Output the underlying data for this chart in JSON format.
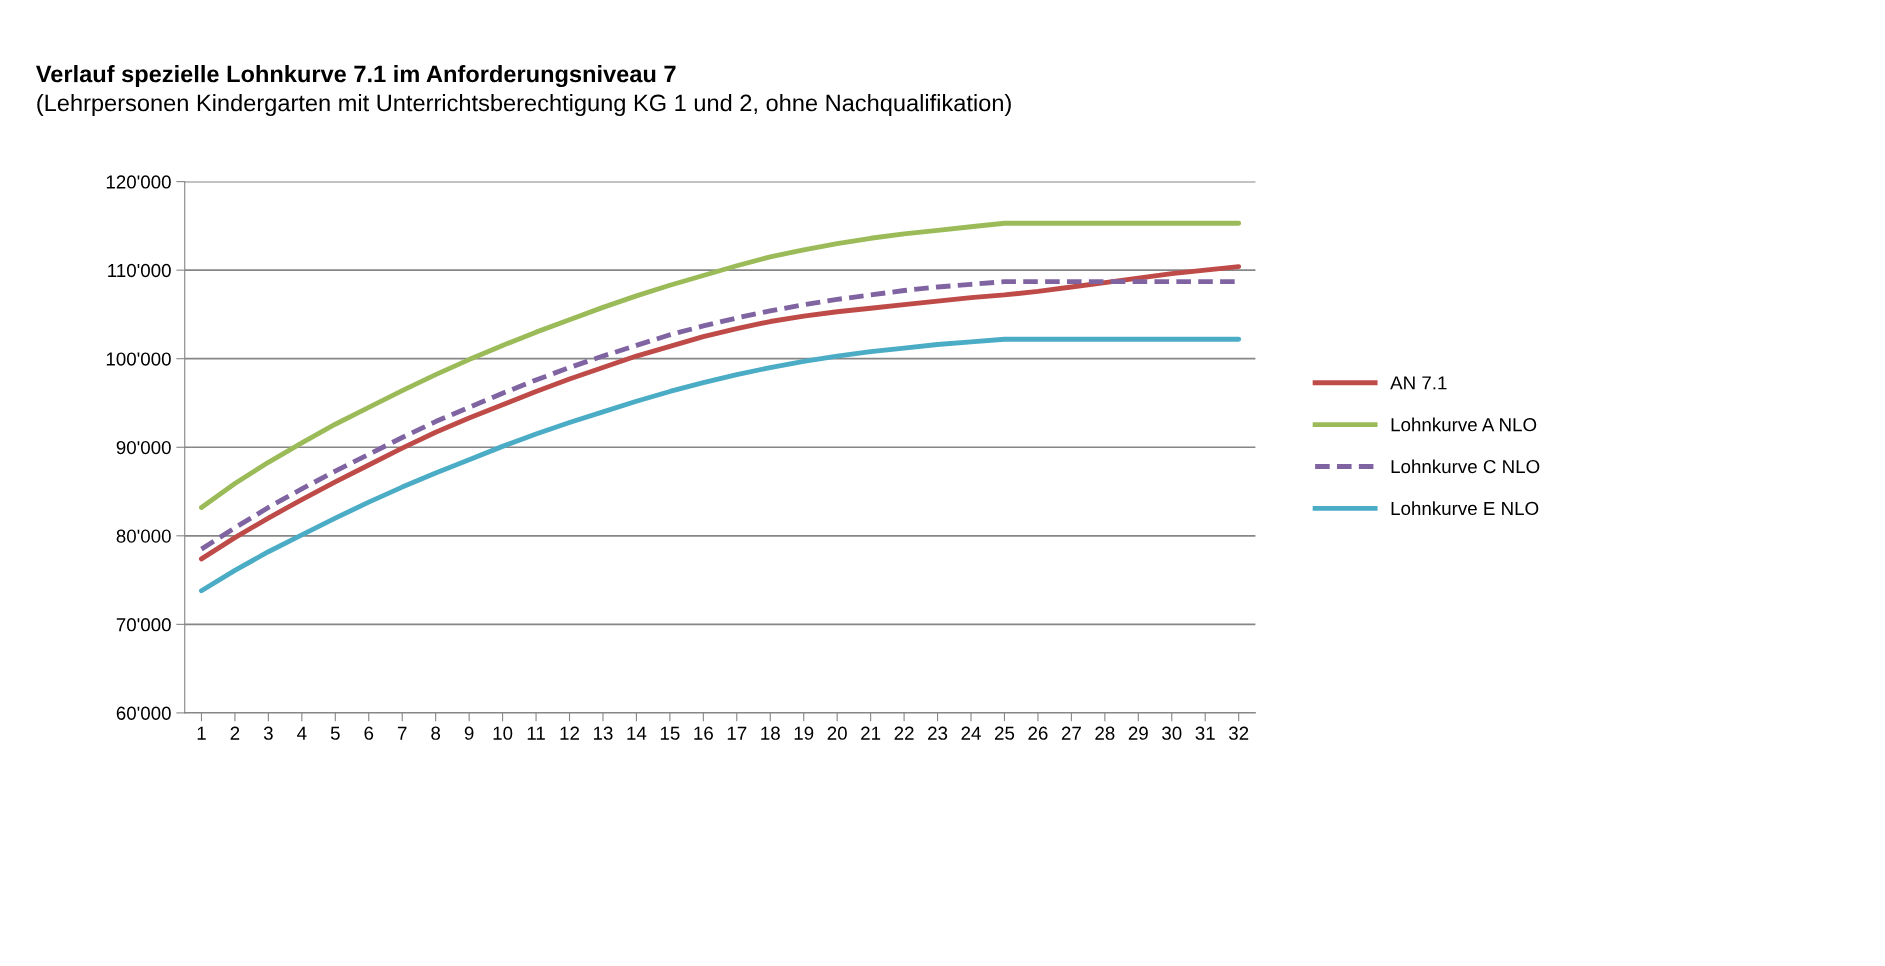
{
  "chart_data": {
    "type": "line",
    "title": "Verlauf spezielle Lohnkurve 7.1 im Anforderungsniveau 7",
    "subtitle": "(Lehrpersonen Kindergarten mit Unterrichtsberechtigung KG 1 und 2, ohne Nachqualifikation)",
    "categories": [
      "1",
      "2",
      "3",
      "4",
      "5",
      "6",
      "7",
      "8",
      "9",
      "10",
      "11",
      "12",
      "13",
      "14",
      "15",
      "16",
      "17",
      "18",
      "19",
      "20",
      "21",
      "22",
      "23",
      "24",
      "25",
      "26",
      "27",
      "28",
      "29",
      "30",
      "31",
      "32"
    ],
    "series": [
      {
        "name": "AN 7.1",
        "color": "#be4b48",
        "line_style": "solid",
        "values": [
          77400,
          79800,
          82000,
          84100,
          86100,
          88000,
          89900,
          91700,
          93300,
          94800,
          96300,
          97700,
          99000,
          100300,
          101400,
          102500,
          103400,
          104200,
          104800,
          105300,
          105700,
          106100,
          106500,
          106900,
          107200,
          107600,
          108100,
          108600,
          109100,
          109600,
          110000,
          110400
        ]
      },
      {
        "name": "Lohnkurve A NLO",
        "color": "#9bbb59",
        "line_style": "solid",
        "values": [
          83200,
          85900,
          88300,
          90500,
          92600,
          94500,
          96400,
          98200,
          99900,
          101500,
          103000,
          104400,
          105800,
          107100,
          108300,
          109400,
          110500,
          111500,
          112300,
          113000,
          113600,
          114100,
          114500,
          114900,
          115300,
          115300,
          115300,
          115300,
          115300,
          115300,
          115300,
          115300
        ]
      },
      {
        "name": "Lohnkurve C NLO",
        "color": "#8064a2",
        "line_style": "dashed",
        "values": [
          78500,
          80900,
          83200,
          85300,
          87300,
          89200,
          91100,
          92900,
          94500,
          96100,
          97600,
          99000,
          100300,
          101500,
          102700,
          103700,
          104600,
          105400,
          106100,
          106700,
          107200,
          107700,
          108100,
          108400,
          108700,
          108700,
          108700,
          108700,
          108700,
          108700,
          108700,
          108700
        ]
      },
      {
        "name": "Lohnkurve E NLO",
        "color": "#4bacc6",
        "line_style": "solid",
        "values": [
          73800,
          76100,
          78200,
          80100,
          82000,
          83800,
          85500,
          87100,
          88600,
          90100,
          91500,
          92800,
          94000,
          95200,
          96300,
          97300,
          98200,
          99000,
          99700,
          100300,
          100800,
          101200,
          101600,
          101900,
          102200,
          102200,
          102200,
          102200,
          102200,
          102200,
          102200,
          102200
        ]
      }
    ],
    "ylim": [
      60000,
      120000
    ],
    "yticks": [
      {
        "value": 60000,
        "label": "60'000"
      },
      {
        "value": 70000,
        "label": "70'000"
      },
      {
        "value": 80000,
        "label": "80'000"
      },
      {
        "value": 90000,
        "label": "90'000"
      },
      {
        "value": 100000,
        "label": "100'000"
      },
      {
        "value": 110000,
        "label": "110'000"
      },
      {
        "value": 120000,
        "label": "120'000"
      }
    ],
    "grid": "y",
    "legend": "right",
    "marker": "none"
  }
}
